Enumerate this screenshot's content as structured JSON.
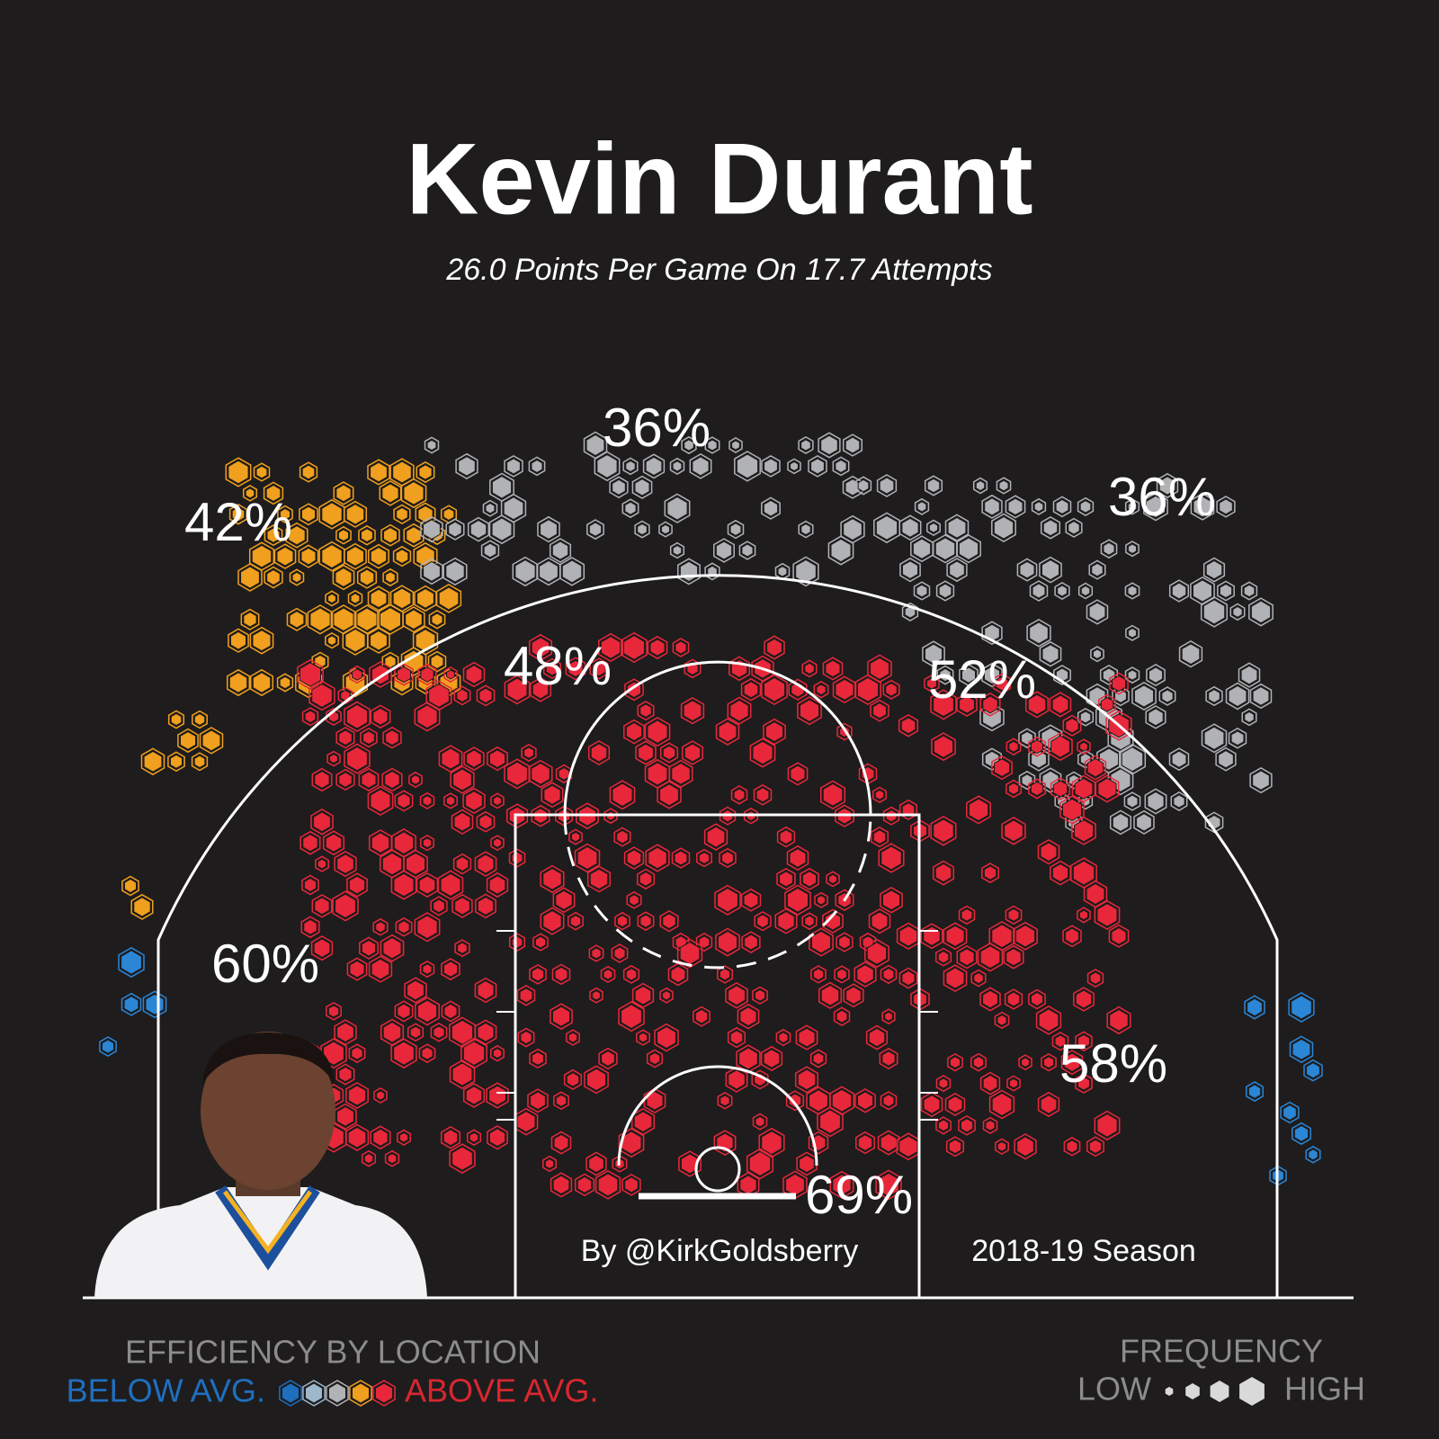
{
  "header": {
    "title": "Kevin Durant",
    "subtitle": "26.0 Points Per Game On 17.7 Attempts"
  },
  "zone_labels": [
    "42%",
    "36%",
    "36%",
    "48%",
    "52%",
    "60%",
    "58%",
    "69%"
  ],
  "credits": {
    "author": "By @KirkGoldsberry",
    "season": "2018-19 Season"
  },
  "legend": {
    "efficiency": {
      "title": "EFFICIENCY BY LOCATION",
      "low": "BELOW AVG.",
      "high": "ABOVE AVG."
    },
    "frequency": {
      "title": "FREQUENCY",
      "low": "LOW",
      "high": "HIGH"
    }
  }
}
